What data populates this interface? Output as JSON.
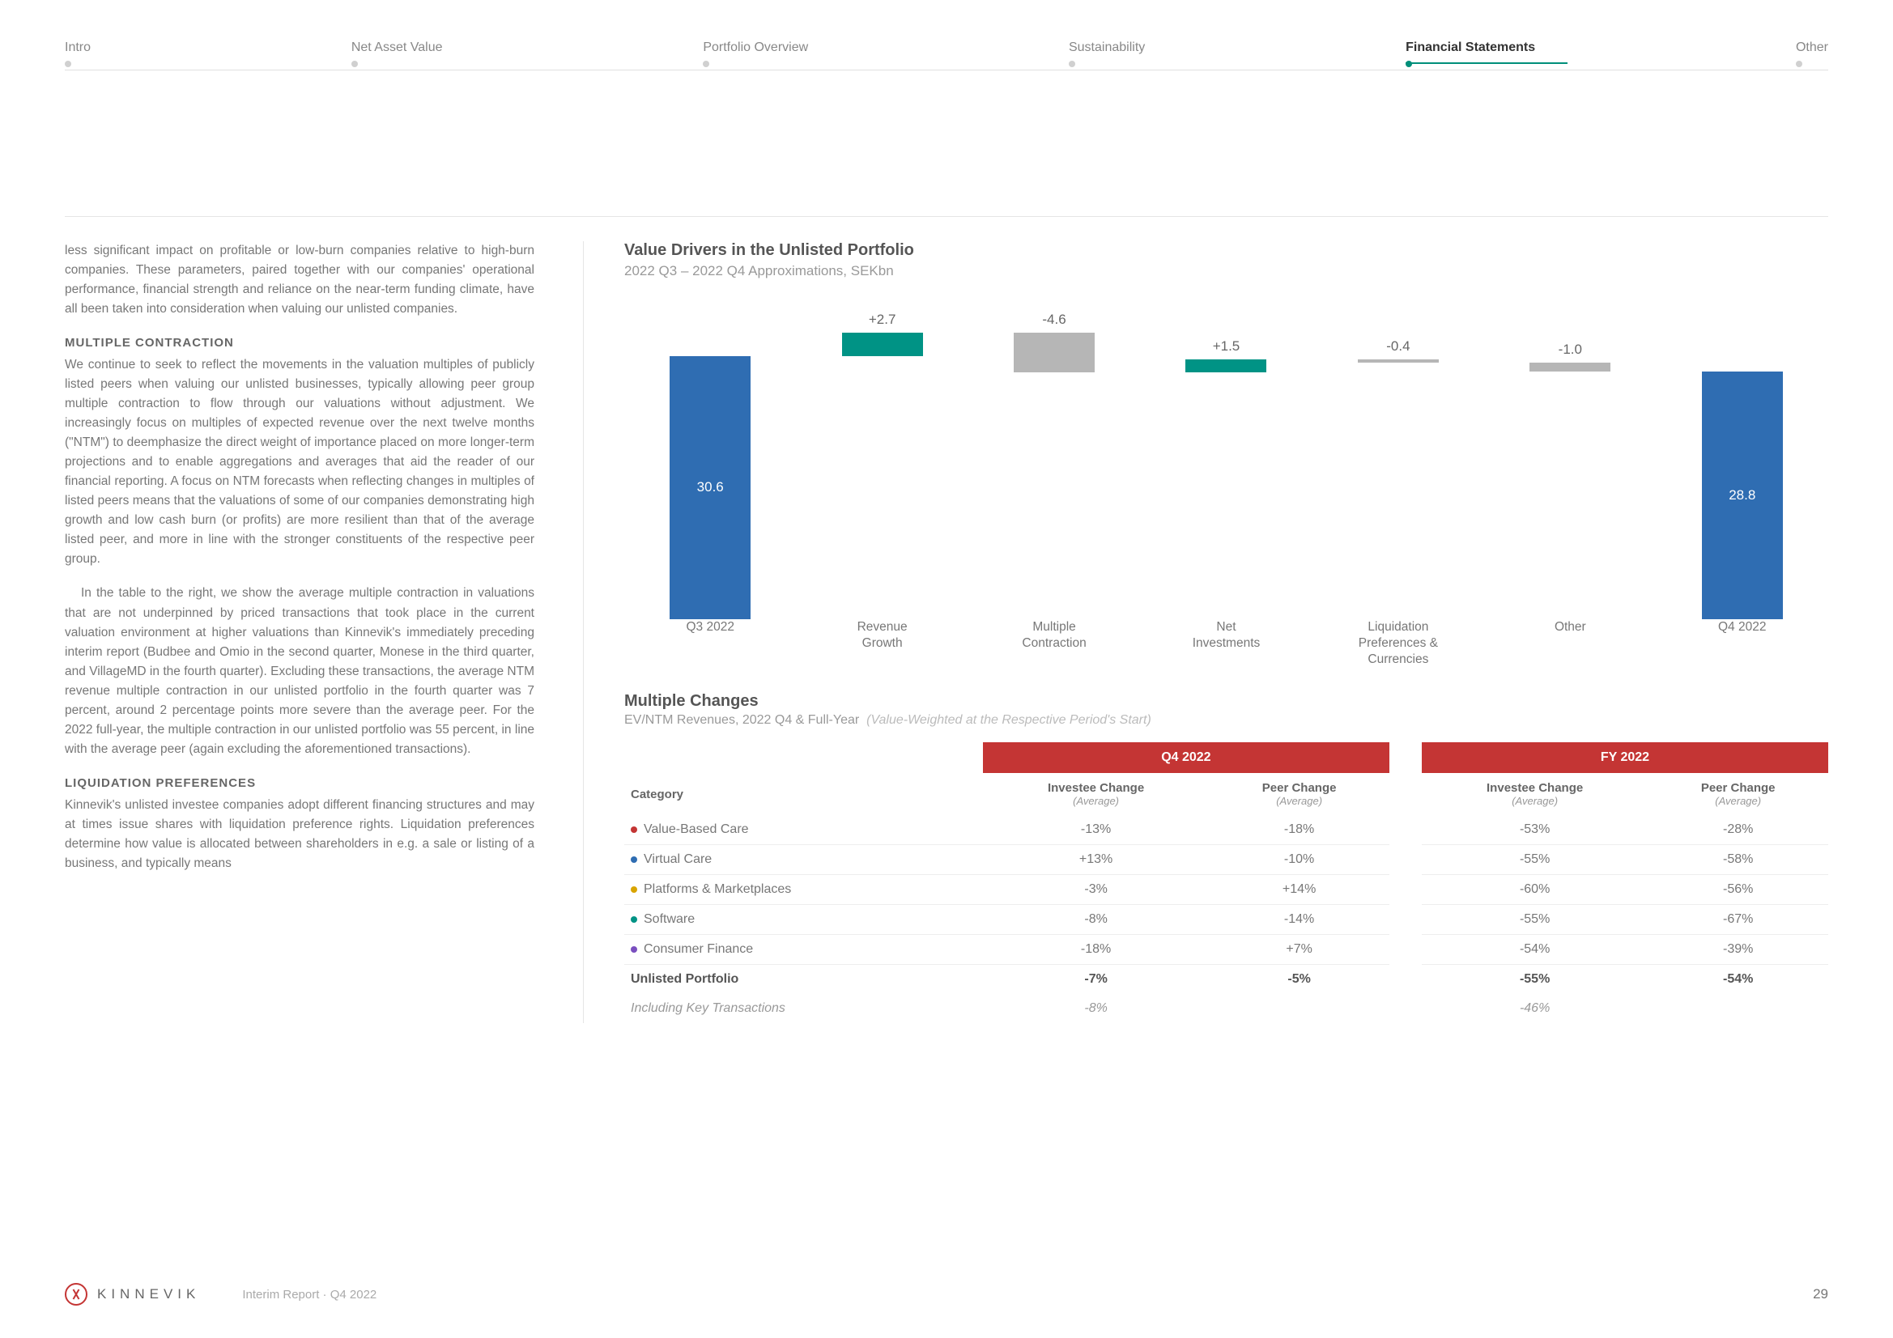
{
  "nav": {
    "items": [
      "Intro",
      "Net Asset Value",
      "Portfolio Overview",
      "Sustainability",
      "Financial Statements",
      "Other"
    ],
    "active_index": 4
  },
  "left": {
    "intro_para": "less significant impact on profitable or low-burn companies relative to high-burn companies. These parameters, paired together with our companies' operational performance, financial strength and reliance on the near-term funding climate, have all been taken into consideration when valuing our unlisted companies.",
    "h1": "MULTIPLE CONTRACTION",
    "p1a": "We continue to seek to reflect the movements in the valuation multiples of publicly listed peers when valuing our unlisted businesses, typically allowing peer group multiple contraction to flow through our valuations without adjustment. We increasingly focus on multiples of expected revenue over the next twelve months (\"NTM\") to deemphasize the direct weight of importance placed on more longer-term projections and to enable aggregations and averages that aid the reader of our financial reporting. A focus on NTM forecasts when reflecting changes in multiples of listed peers means that the valuations of some of our companies demonstrating high growth and low cash burn (or profits) are more resilient than that of the average listed peer, and more in line with the stronger constituents of the respective peer group.",
    "p1b": "In the table to the right, we show the average multiple contraction in valuations that are not underpinned by priced transactions that took place in the current valuation environment at higher valuations than Kinnevik's immediately preceding interim report (Budbee and Omio in the second quarter, Monese in the third quarter, and VillageMD in the fourth quarter). Excluding these transactions, the average NTM revenue multiple contraction in our unlisted portfolio in the fourth quarter was 7 percent, around 2 percentage points more severe than the average peer. For the 2022 full-year, the multiple contraction in our unlisted portfolio was 55 percent, in line with the average peer (again excluding the aforementioned transactions).",
    "h2": "LIQUIDATION PREFERENCES",
    "p2": "Kinnevik's unlisted investee companies adopt different financing structures and may at times issue shares with liquidation preference rights. Liquidation preferences determine how value is allocated between shareholders in e.g. a sale or listing of a business, and typically means"
  },
  "chart": {
    "title": "Value Drivers in the Unlisted Portfolio",
    "subtitle": "2022 Q3 – 2022 Q4 Approximations, SEKbn",
    "colors": {
      "blue": "#2f6db2",
      "teal": "#009385",
      "grey": "#b6b6b6"
    },
    "scale_max": 32,
    "bars": [
      {
        "label": "Q3 2022",
        "value": 30.6,
        "type": "total",
        "color": "blue",
        "bottom": 0
      },
      {
        "label": "Revenue\nGrowth",
        "value": 2.7,
        "type": "pos",
        "color": "teal",
        "bottom": 30.6,
        "prefix": "+"
      },
      {
        "label": "Multiple\nContraction",
        "value": -4.6,
        "type": "neg",
        "color": "grey",
        "bottom": 28.7
      },
      {
        "label": "Net\nInvestments",
        "value": 1.5,
        "type": "pos",
        "color": "teal",
        "bottom": 28.7,
        "prefix": "+"
      },
      {
        "label": "Liquidation\nPreferences &\nCurrencies",
        "value": -0.4,
        "type": "neg",
        "color": "grey",
        "bottom": 29.8
      },
      {
        "label": "Other",
        "value": -1.0,
        "type": "neg",
        "color": "grey",
        "bottom": 28.8
      },
      {
        "label": "Q4 2022",
        "value": 28.8,
        "type": "total",
        "color": "blue",
        "bottom": 0
      }
    ]
  },
  "table": {
    "title": "Multiple Changes",
    "subtitle_a": "EV/NTM Revenues, 2022 Q4 & Full-Year",
    "subtitle_b": "(Value-Weighted at the Respective Period's Start)",
    "period1": "Q4 2022",
    "period2": "FY 2022",
    "col_cat": "Category",
    "col_inv": "Investee Change",
    "col_peer": "Peer Change",
    "col_sub": "(Average)",
    "header_bg": "#c43534",
    "rows": [
      {
        "dot": "#c43534",
        "name": "Value-Based Care",
        "q4i": "-13%",
        "q4p": "-18%",
        "fyi": "-53%",
        "fyp": "-28%"
      },
      {
        "dot": "#2f6db2",
        "name": "Virtual Care",
        "q4i": "+13%",
        "q4p": "-10%",
        "fyi": "-55%",
        "fyp": "-58%"
      },
      {
        "dot": "#d9a400",
        "name": "Platforms & Marketplaces",
        "q4i": "-3%",
        "q4p": "+14%",
        "fyi": "-60%",
        "fyp": "-56%"
      },
      {
        "dot": "#009385",
        "name": "Software",
        "q4i": "-8%",
        "q4p": "-14%",
        "fyi": "-55%",
        "fyp": "-67%"
      },
      {
        "dot": "#7a4fbf",
        "name": "Consumer Finance",
        "q4i": "-18%",
        "q4p": "+7%",
        "fyi": "-54%",
        "fyp": "-39%"
      }
    ],
    "total": {
      "name": "Unlisted Portfolio",
      "q4i": "-7%",
      "q4p": "-5%",
      "fyi": "-55%",
      "fyp": "-54%"
    },
    "incl": {
      "name": "Including Key Transactions",
      "q4i": "-8%",
      "q4p": "",
      "fyi": "-46%",
      "fyp": ""
    }
  },
  "footer": {
    "brand": "KINNEVIK",
    "mid": "Interim Report · Q4 2022",
    "page": "29"
  }
}
